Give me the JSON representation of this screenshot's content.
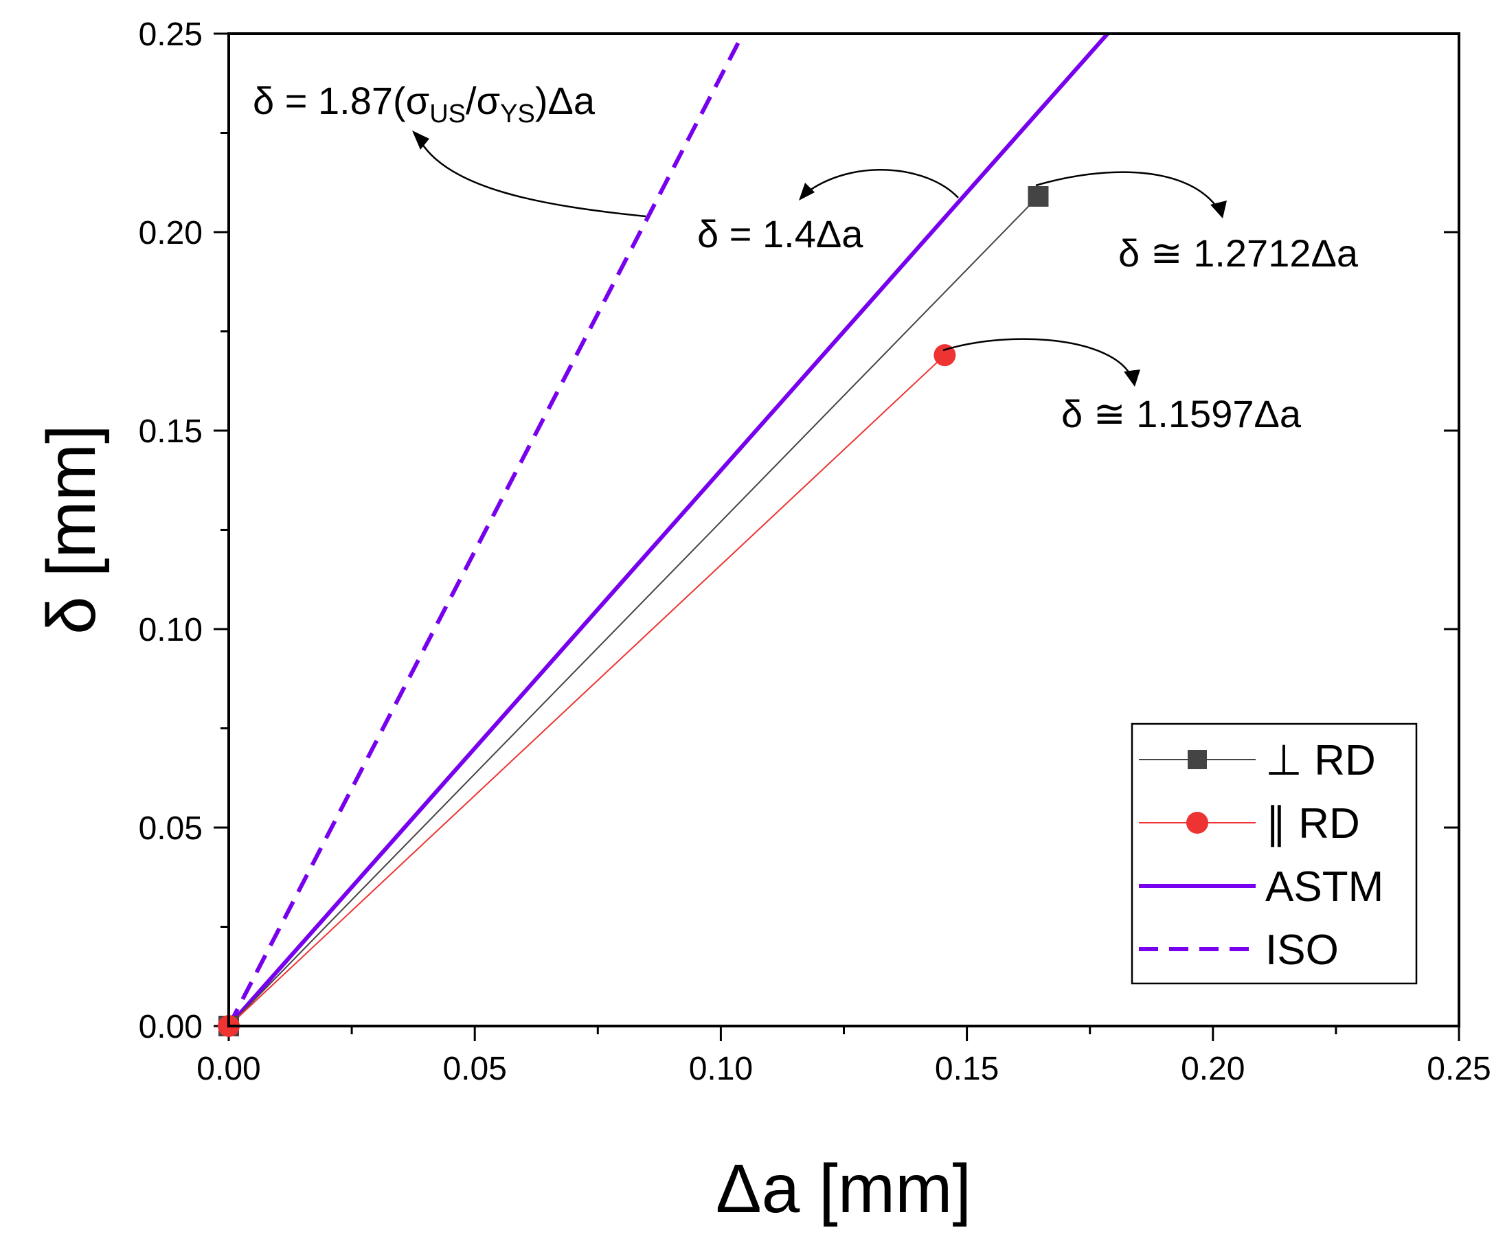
{
  "chart_data": {
    "type": "line",
    "title": "",
    "xlabel": "Δa [mm]",
    "ylabel": "δ [mm]",
    "xlim": [
      0,
      0.25
    ],
    "ylim": [
      0,
      0.25
    ],
    "x_major_ticks": [
      0,
      0.05,
      0.1,
      0.15,
      0.2,
      0.25
    ],
    "x_tick_labels": [
      "0.00",
      "0.05",
      "0.10",
      "0.15",
      "0.20",
      "0.25"
    ],
    "y_major_ticks": [
      0,
      0.05,
      0.1,
      0.15,
      0.2,
      0.25
    ],
    "y_tick_labels": [
      "0.00",
      "0.05",
      "0.10",
      "0.15",
      "0.20",
      "0.25"
    ],
    "minor_step": 0.025,
    "grid": false,
    "legend_position": "bottom-right",
    "series": [
      {
        "name": "⊥ RD",
        "style": "line-marker",
        "marker": "square",
        "color": "#444444",
        "width": 2,
        "x": [
          0,
          0.1645
        ],
        "y": [
          0,
          0.209
        ]
      },
      {
        "name": "∥ RD",
        "style": "line-marker",
        "marker": "circle",
        "color": "#ee3333",
        "width": 2,
        "x": [
          0,
          0.1455
        ],
        "y": [
          0,
          0.169
        ]
      },
      {
        "name": "ASTM",
        "style": "line",
        "color": "#7700ee",
        "width": 6,
        "x": [
          0,
          0.1786
        ],
        "y": [
          0,
          0.25
        ]
      },
      {
        "name": "ISO",
        "style": "dashed",
        "color": "#7700ee",
        "width": 6,
        "x": [
          0,
          0.1045
        ],
        "y": [
          0,
          0.25
        ]
      }
    ],
    "annotations": [
      {
        "id": "iso",
        "text": "δ = 1.87(σ",
        "sub1": "US",
        "mid": "/σ",
        "sub2": "YS",
        "tail": ")Δa"
      },
      {
        "id": "astm",
        "text": "δ = 1.4Δa"
      },
      {
        "id": "perp",
        "text": "δ ≅ 1.2712Δa"
      },
      {
        "id": "par",
        "text": "δ ≅ 1.1597Δa"
      }
    ]
  }
}
